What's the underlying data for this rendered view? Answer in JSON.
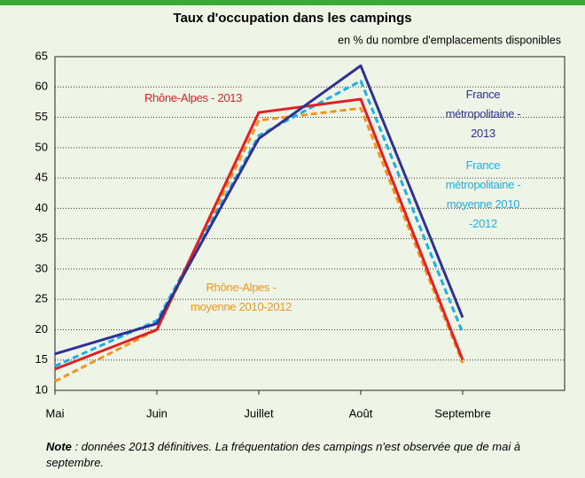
{
  "chart_data": {
    "type": "line",
    "title": "Taux d'occupation dans les campings",
    "subtitle": "en % du nombre d'emplacements disponibles",
    "categories": [
      "Mai",
      "Juin",
      "Juillet",
      "Août",
      "Septembre"
    ],
    "ylim": [
      10,
      65
    ],
    "yticks": [
      10,
      15,
      20,
      25,
      30,
      35,
      40,
      45,
      50,
      55,
      60,
      65
    ],
    "grid": true,
    "series": [
      {
        "name": "Rhône-Alpes -\nmoyenne 2010-2012",
        "color": "#f7941d",
        "dashed": true,
        "values": [
          11.5,
          20,
          54.5,
          56.5,
          14.5
        ]
      },
      {
        "name": "France métropolitaine -\nmoyenne 2010 -2012",
        "color": "#1eaee6",
        "dashed": true,
        "values": [
          14,
          21.5,
          52,
          61,
          19.5
        ]
      },
      {
        "name": "Rhône-Alpes - 2013",
        "color": "#e31e24",
        "dashed": false,
        "values": [
          13.5,
          20,
          55.8,
          58,
          15
        ]
      },
      {
        "name": "France métropolitaine - 2013",
        "color": "#2e3192",
        "dashed": false,
        "values": [
          16,
          21,
          51.5,
          63.5,
          22
        ]
      }
    ],
    "note_label": "Note",
    "note": " : données 2013 définitives. La fréquentation des campings n'est observée que de mai à septembre."
  }
}
